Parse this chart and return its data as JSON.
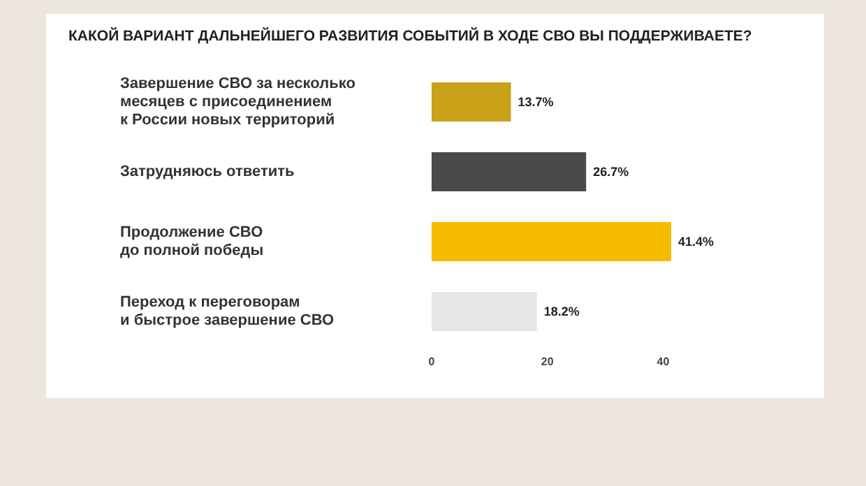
{
  "chart_data": {
    "type": "bar",
    "orientation": "horizontal",
    "title": "КАКОЙ ВАРИАНТ ДАЛЬНЕЙШЕГО РАЗВИТИЯ СОБЫТИЙ В ХОДЕ СВО ВЫ ПОДДЕРЖИВАЕТЕ?",
    "categories": [
      "Завершение СВО за несколько\nмесяцев с присоединением\nк России новых территорий",
      "Затрудняюсь ответить",
      "Продолжение СВО\nдо полной победы",
      "Переход к переговорам\nи быстрое завершение СВО"
    ],
    "values": [
      13.7,
      26.7,
      41.4,
      18.2
    ],
    "colors": [
      "#c9a21a",
      "#4a4a4a",
      "#f7bc00",
      "#e6e6e6"
    ],
    "value_labels": [
      "13.7%",
      "26.7%",
      "41.4%",
      "18.2%"
    ],
    "xlim": [
      0,
      42
    ],
    "xticks": [
      0,
      20,
      40
    ]
  }
}
